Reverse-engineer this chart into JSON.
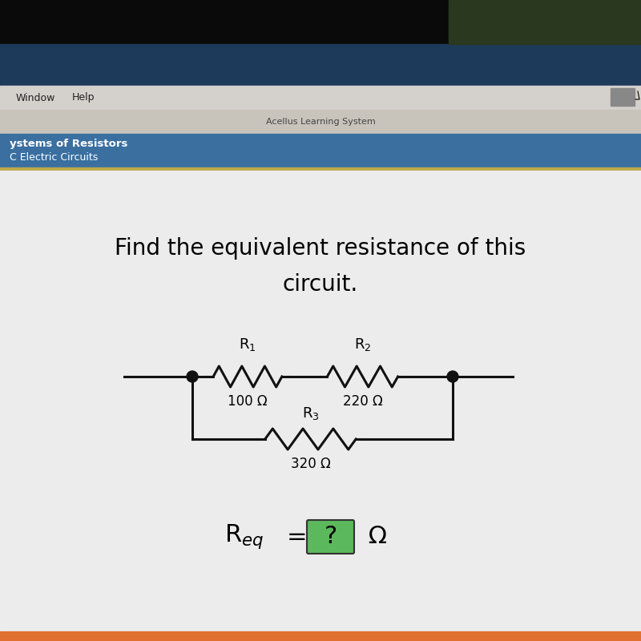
{
  "title_line1": "Find the equivalent resistance of this",
  "title_line2": "circuit.",
  "title_fontsize": 20,
  "bg_color": "#d8d0c8",
  "content_bg": "#e8e4de",
  "header_bg": "#3a6fa0",
  "header_text1": "ystems of Resistors",
  "header_text2": "C Electric Circuits",
  "acellus_text": "Acellus Learning System",
  "acellus_bar_color": "#c8c4bc",
  "top_bar_color": "#111111",
  "top_bar2_color": "#2a5888",
  "menubar_color": "#d4d0cc",
  "menu_items": [
    "Window",
    "Help"
  ],
  "R1_label": "R$_1$",
  "R2_label": "R$_2$",
  "R3_label": "R$_3$",
  "R1_value": "100 Ω",
  "R2_value": "220 Ω",
  "R3_value": "320 Ω",
  "req_box_color": "#5cb85c",
  "wire_color": "#111111",
  "resistor_color": "#111111",
  "dot_color": "#111111",
  "border_color": "#b8a060",
  "gold_border": "#c0a84a"
}
